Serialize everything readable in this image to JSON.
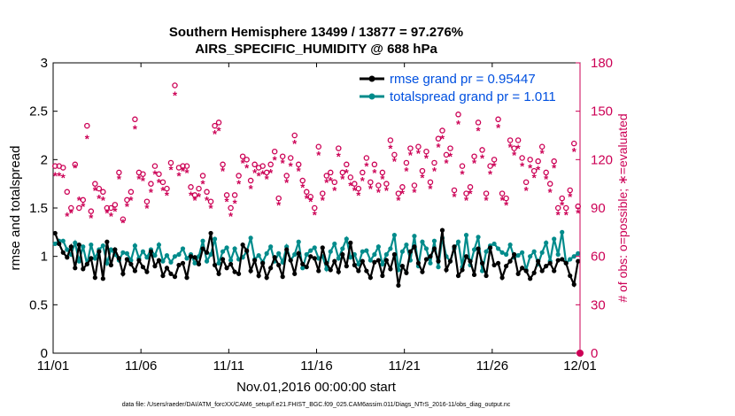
{
  "chart_data": {
    "type": "line",
    "title_line1": "Southern Hemisphere 13499 / 13877 = 97.276%",
    "title_line2": "AIRS_SPECIFIC_HUMIDITY @ 688 hPa",
    "xlabel": "Nov.01,2016 00:00:00 start",
    "ylabel_left": "rmse and totalspread",
    "ylabel_right": "# of obs: o=possible; ∗=evaluated",
    "footnote": "data file: /Users/raeder/DAI/ATM_forcXX/CAM6_setup/f.e21.FHIST_BGC.f09_025.CAM6assim.011/Diags_NTrS_2016-11/obs_diag_output.nc",
    "x_tick_labels": [
      "11/01",
      "11/06",
      "11/11",
      "11/16",
      "11/21",
      "11/26",
      "12/01"
    ],
    "x_range_days": [
      0,
      30
    ],
    "ylim_left": [
      0,
      3
    ],
    "yticks_left": [
      "0",
      "0.5",
      "1",
      "1.5",
      "2",
      "2.5",
      "3"
    ],
    "ylim_right": [
      0,
      180
    ],
    "yticks_right": [
      "0",
      "30",
      "60",
      "90",
      "120",
      "150",
      "180"
    ],
    "colors": {
      "rmse": "#000000",
      "spread": "#008b8b",
      "obs": "#cc0055",
      "legend_text": "#0050e0"
    },
    "series": [
      {
        "name": "rmse",
        "legend": "rmse grand pr = 0.95447",
        "axis": "left",
        "values": [
          1.24,
          1.13,
          1.04,
          0.99,
          1.1,
          0.88,
          1.12,
          0.87,
          0.92,
          0.98,
          0.78,
          1.05,
          0.77,
          1.15,
          0.91,
          1.07,
          0.98,
          0.82,
          0.97,
          0.92,
          0.85,
          0.96,
          0.89,
          0.84,
          1.05,
          0.9,
          0.96,
          0.8,
          0.88,
          0.82,
          0.79,
          0.91,
          0.93,
          0.78,
          1.0,
          0.99,
          0.92,
          1.08,
          1.04,
          1.24,
          0.91,
          0.82,
          0.97,
          0.88,
          0.92,
          0.84,
          0.82,
          1.12,
          1.06,
          0.85,
          0.96,
          0.8,
          0.93,
          0.78,
          0.88,
          0.99,
          0.91,
          0.79,
          1.07,
          0.96,
          0.82,
          1.03,
          0.92,
          0.89,
          1.0,
          0.98,
          0.85,
          1.09,
          0.93,
          0.86,
          0.95,
          0.84,
          1.02,
          0.9,
          1.14,
          0.91,
          0.85,
          0.95,
          0.85,
          0.78,
          0.94,
          0.96,
          0.8,
          0.96,
          0.87,
          1.02,
          0.7,
          0.9,
          0.83,
          1.05,
          1.1,
          0.93,
          0.84,
          0.97,
          1.0,
          1.08,
          0.95,
          1.27,
          0.86,
          0.95,
          1.1,
          0.8,
          0.86,
          1.0,
          0.95,
          0.81,
          1.08,
          0.93,
          0.8,
          1.09,
          0.91,
          0.93,
          0.78,
          0.9,
          0.95,
          1.02,
          0.82,
          0.88,
          0.85,
          0.77,
          0.83,
          0.95,
          0.85,
          0.9,
          0.93,
          0.85,
          0.96,
          0.97,
          0.93,
          0.8,
          0.71,
          0.95
        ]
      },
      {
        "name": "totalspread",
        "legend": "totalspread grand pr = 1.011",
        "axis": "left",
        "values": [
          1.13,
          1.16,
          1.16,
          1.07,
          1.02,
          1.14,
          0.95,
          1.1,
          0.92,
          1.12,
          0.98,
          1.07,
          1.11,
          0.93,
          1.07,
          1.02,
          0.96,
          1.04,
          1.03,
          0.96,
          1.11,
          0.98,
          1.05,
          0.99,
          1.07,
          1.01,
          1.12,
          0.95,
          1.01,
          0.94,
          1.0,
          1.02,
          1.08,
          0.98,
          1.02,
          0.93,
          1.0,
          1.16,
          0.95,
          1.02,
          1.18,
          0.93,
          1.05,
          1.09,
          0.96,
          1.08,
          0.97,
          0.99,
          1.05,
          1.19,
          0.97,
          1.01,
          0.94,
          1.03,
          1.1,
          0.95,
          1.03,
          0.94,
          1.1,
          0.96,
          1.02,
          1.15,
          0.88,
          1.02,
          1.06,
          1.09,
          0.98,
          1.0,
          0.87,
          1.05,
          1.13,
          0.98,
          1.08,
          1.18,
          0.99,
          1.02,
          0.92,
          1.05,
          1.06,
          0.96,
          1.02,
          1.1,
          0.92,
          1.02,
          1.08,
          1.22,
          0.86,
          1.05,
          1.12,
          0.96,
          1.21,
          0.9,
          1.15,
          1.08,
          0.93,
          1.16,
          0.89,
          1.19,
          1.0,
          0.95,
          1.08,
          1.15,
          0.89,
          1.22,
          0.91,
          1.07,
          1.2,
          0.85,
          1.05,
          1.11,
          1.13,
          1.08,
          1.04,
          1.02,
          1.12,
          0.99,
          1.01,
          1.04,
          0.86,
          1.0,
          1.05,
          0.92,
          1.04,
          1.14,
          0.95,
          1.18,
          1.02,
          1.25,
          0.93,
          0.97,
          1.0,
          1.03
        ]
      },
      {
        "name": "obs_possible",
        "legend": "o = possible",
        "axis": "right",
        "values": [
          116,
          116,
          115,
          100,
          90,
          117,
          90,
          95,
          141,
          88,
          105,
          102,
          100,
          90,
          90,
          92,
          112,
          83,
          95,
          100,
          145,
          112,
          111,
          94,
          105,
          116,
          111,
          106,
          102,
          118,
          166,
          115,
          116,
          116,
          103,
          98,
          102,
          110,
          100,
          94,
          141,
          143,
          117,
          98,
          90,
          98,
          110,
          122,
          120,
          107,
          117,
          115,
          116,
          112,
          117,
          125,
          96,
          122,
          110,
          121,
          135,
          117,
          107,
          100,
          97,
          90,
          128,
          99,
          110,
          112,
          106,
          127,
          112,
          117,
          109,
          105,
          102,
          112,
          121,
          106,
          117,
          104,
          112,
          105,
          132,
          123,
          99,
          103,
          118,
          127,
          104,
          128,
          113,
          125,
          106,
          118,
          133,
          138,
          123,
          127,
          101,
          148,
          116,
          99,
          103,
          122,
          143,
          126,
          99,
          116,
          120,
          145,
          99,
          96,
          132,
          127,
          132,
          121,
          106,
          120,
          113,
          119,
          128,
          112,
          105,
          119,
          90,
          96,
          90,
          101,
          130,
          91
        ]
      },
      {
        "name": "obs_evaluated",
        "legend": "∗ = evaluated",
        "axis": "right",
        "values": [
          110,
          110,
          109,
          85,
          87,
          115,
          95,
          91,
          133,
          84,
          101,
          96,
          95,
          87,
          85,
          88,
          108,
          81,
          91,
          95,
          139,
          108,
          107,
          90,
          100,
          111,
          106,
          101,
          98,
          114,
          160,
          110,
          113,
          112,
          98,
          95,
          97,
          105,
          95,
          90,
          136,
          138,
          113,
          94,
          85,
          93,
          105,
          118,
          115,
          102,
          112,
          110,
          111,
          108,
          112,
          120,
          92,
          118,
          106,
          116,
          130,
          113,
          103,
          96,
          94,
          86,
          123,
          95,
          106,
          107,
          101,
          122,
          108,
          112,
          104,
          101,
          98,
          107,
          116,
          102,
          112,
          100,
          108,
          101,
          127,
          119,
          95,
          99,
          113,
          123,
          100,
          124,
          109,
          121,
          102,
          113,
          128,
          133,
          118,
          122,
          97,
          142,
          111,
          95,
          99,
          118,
          138,
          121,
          95,
          111,
          116,
          140,
          95,
          92,
          128,
          123,
          127,
          116,
          101,
          115,
          109,
          114,
          124,
          108,
          100,
          115,
          86,
          92,
          86,
          97,
          125,
          87
        ]
      }
    ],
    "right_axis_marker_value": 0
  }
}
